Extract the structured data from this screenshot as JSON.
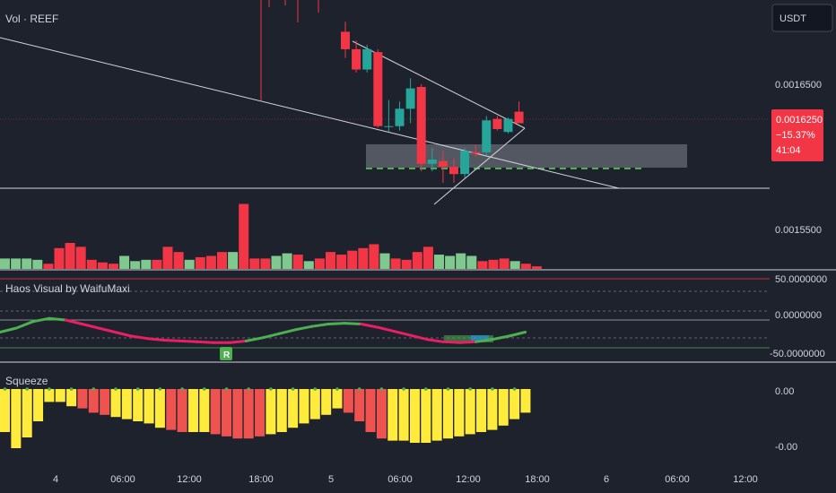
{
  "main_pane": {
    "legend": "Vol · REEF",
    "currency_button": "USDT",
    "price_ticks": [
      {
        "label": "0.0016500",
        "value": 0.00165
      },
      {
        "label": "0.0015500",
        "value": 0.00155
      }
    ],
    "last_price": {
      "price": "0.0016250",
      "change": "−15.37%",
      "countdown": "41:04",
      "color": "#f23645"
    }
  },
  "haos_pane": {
    "title": "Haos Visual by WaifuMaxi",
    "ticks": [
      "50.0000000",
      "0.0000000",
      "-50.0000000"
    ],
    "signal_label": "R"
  },
  "squeeze_pane": {
    "title": "Squeeze",
    "ticks": [
      "0.00",
      "-0.00"
    ]
  },
  "time_axis": [
    "4",
    "06:00",
    "12:00",
    "18:00",
    "5",
    "06:00",
    "12:00",
    "18:00",
    "6",
    "06:00",
    "12:00"
  ],
  "colors": {
    "background": "#1e222d",
    "up": "#26a69a",
    "down": "#f23645",
    "volume_up": "#7fc98f",
    "volume_down": "#f23645",
    "squeeze_yellow": "#ffeb3b",
    "squeeze_red": "#ef5350",
    "haos_green": "#4caf50",
    "haos_pink": "#e91e63"
  },
  "chart_data": [
    {
      "type": "candlestick",
      "name": "REEF/USDT price",
      "candles": [
        {
          "t": "5 01:00",
          "o": 0.001688,
          "h": 0.001695,
          "l": 0.00167,
          "c": 0.001676
        },
        {
          "t": "5 02:00",
          "o": 0.001676,
          "h": 0.001682,
          "l": 0.00166,
          "c": 0.001662
        },
        {
          "t": "5 03:00",
          "o": 0.001662,
          "h": 0.001679,
          "l": 0.00166,
          "c": 0.001676
        },
        {
          "t": "5 04:00",
          "o": 0.001674,
          "h": 0.001676,
          "l": 0.001622,
          "c": 0.001623
        },
        {
          "t": "5 05:00",
          "o": 0.001623,
          "h": 0.001641,
          "l": 0.001619,
          "c": 0.001623
        },
        {
          "t": "5 06:00",
          "o": 0.001623,
          "h": 0.00164,
          "l": 0.00162,
          "c": 0.001635
        },
        {
          "t": "5 07:00",
          "o": 0.001635,
          "h": 0.001656,
          "l": 0.001625,
          "c": 0.001649
        },
        {
          "t": "5 08:00",
          "o": 0.00165,
          "h": 0.001652,
          "l": 0.001592,
          "c": 0.001597
        },
        {
          "t": "5 09:00",
          "o": 0.001597,
          "h": 0.001608,
          "l": 0.001592,
          "c": 0.0016
        },
        {
          "t": "5 10:00",
          "o": 0.001599,
          "h": 0.001606,
          "l": 0.001584,
          "c": 0.001595
        },
        {
          "t": "5 11:00",
          "o": 0.001595,
          "h": 0.001601,
          "l": 0.001584,
          "c": 0.00159
        },
        {
          "t": "5 12:00",
          "o": 0.00159,
          "h": 0.001608,
          "l": 0.001587,
          "c": 0.001606
        },
        {
          "t": "5 13:00",
          "o": 0.001605,
          "h": 0.00161,
          "l": 0.001602,
          "c": 0.001604
        },
        {
          "t": "5 14:00",
          "o": 0.001605,
          "h": 0.00163,
          "l": 0.001603,
          "c": 0.001627
        },
        {
          "t": "5 15:00",
          "o": 0.001628,
          "h": 0.00163,
          "l": 0.00162,
          "c": 0.001621
        },
        {
          "t": "5 16:00",
          "o": 0.001619,
          "h": 0.001629,
          "l": 0.001618,
          "c": 0.001628
        },
        {
          "t": "5 17:00",
          "o": 0.001633,
          "h": 0.00164,
          "l": 0.001625,
          "c": 0.001625
        }
      ]
    },
    {
      "type": "bar",
      "name": "Volume",
      "values": [
        0.8,
        0.8,
        0.8,
        0.7,
        0.4,
        1.6,
        2.0,
        1.7,
        0.7,
        0.5,
        0.4,
        1.0,
        0.6,
        0.7,
        0.7,
        1.7,
        1.3,
        0.7,
        0.9,
        1.0,
        1.3,
        1.3,
        5.0,
        0.8,
        0.8,
        1.0,
        1.2,
        1.1,
        0.6,
        0.8,
        1.3,
        1.1,
        1.4,
        1.6,
        1.9,
        1.2,
        0.8,
        0.7,
        1.3,
        1.7,
        1.1,
        1.0,
        1.2,
        1.0,
        0.6,
        0.7,
        0.8,
        0.6,
        0.4,
        0.2
      ],
      "up": [
        1,
        1,
        1,
        1,
        0,
        0,
        0,
        0,
        0,
        0,
        0,
        1,
        1,
        1,
        0,
        0,
        0,
        1,
        0,
        0,
        0,
        1,
        0,
        0,
        0,
        1,
        1,
        0,
        1,
        0,
        0,
        0,
        0,
        0,
        0,
        1,
        0,
        0,
        0,
        0,
        1,
        1,
        1,
        1,
        0,
        0,
        0,
        1,
        0,
        0
      ]
    },
    {
      "type": "line",
      "name": "Haos Visual oscillator",
      "y_ticks": [
        50,
        0,
        -50
      ],
      "values": [
        -15,
        -10,
        -2,
        2,
        0,
        -5,
        -10,
        -15,
        -20,
        -23,
        -25,
        -26,
        -27,
        -28,
        -28,
        -26,
        -22,
        -17,
        -12,
        -8,
        -5,
        -4,
        -5,
        -9,
        -14,
        -19,
        -24,
        -27,
        -28,
        -27,
        -24,
        -20,
        -15
      ],
      "rising": [
        1,
        1,
        1,
        1,
        0,
        0,
        0,
        0,
        0,
        0,
        0,
        0,
        0,
        0,
        0,
        1,
        1,
        1,
        1,
        1,
        1,
        1,
        0,
        0,
        0,
        0,
        0,
        0,
        0,
        1,
        1,
        1,
        1
      ]
    },
    {
      "type": "bar",
      "name": "Squeeze momentum",
      "y_ticks": [
        "0.00",
        "-0.00"
      ],
      "values": [
        -0.4,
        -0.55,
        -0.45,
        -0.3,
        -0.12,
        -0.12,
        -0.16,
        -0.18,
        -0.22,
        -0.24,
        -0.26,
        -0.28,
        -0.3,
        -0.32,
        -0.36,
        -0.38,
        -0.4,
        -0.4,
        -0.4,
        -0.42,
        -0.44,
        -0.46,
        -0.46,
        -0.44,
        -0.42,
        -0.4,
        -0.36,
        -0.32,
        -0.28,
        -0.24,
        -0.18,
        -0.22,
        -0.3,
        -0.4,
        -0.46,
        -0.48,
        -0.48,
        -0.5,
        -0.5,
        -0.48,
        -0.46,
        -0.44,
        -0.42,
        -0.4,
        -0.38,
        -0.34,
        -0.28,
        -0.22
      ],
      "colors": [
        "y",
        "y",
        "y",
        "y",
        "y",
        "y",
        "y",
        "r",
        "r",
        "r",
        "y",
        "y",
        "y",
        "y",
        "y",
        "r",
        "r",
        "y",
        "y",
        "r",
        "r",
        "r",
        "r",
        "r",
        "y",
        "y",
        "y",
        "y",
        "y",
        "y",
        "y",
        "r",
        "r",
        "r",
        "r",
        "y",
        "y",
        "y",
        "y",
        "y",
        "y",
        "y",
        "y",
        "y",
        "y",
        "y",
        "y",
        "y"
      ]
    }
  ]
}
